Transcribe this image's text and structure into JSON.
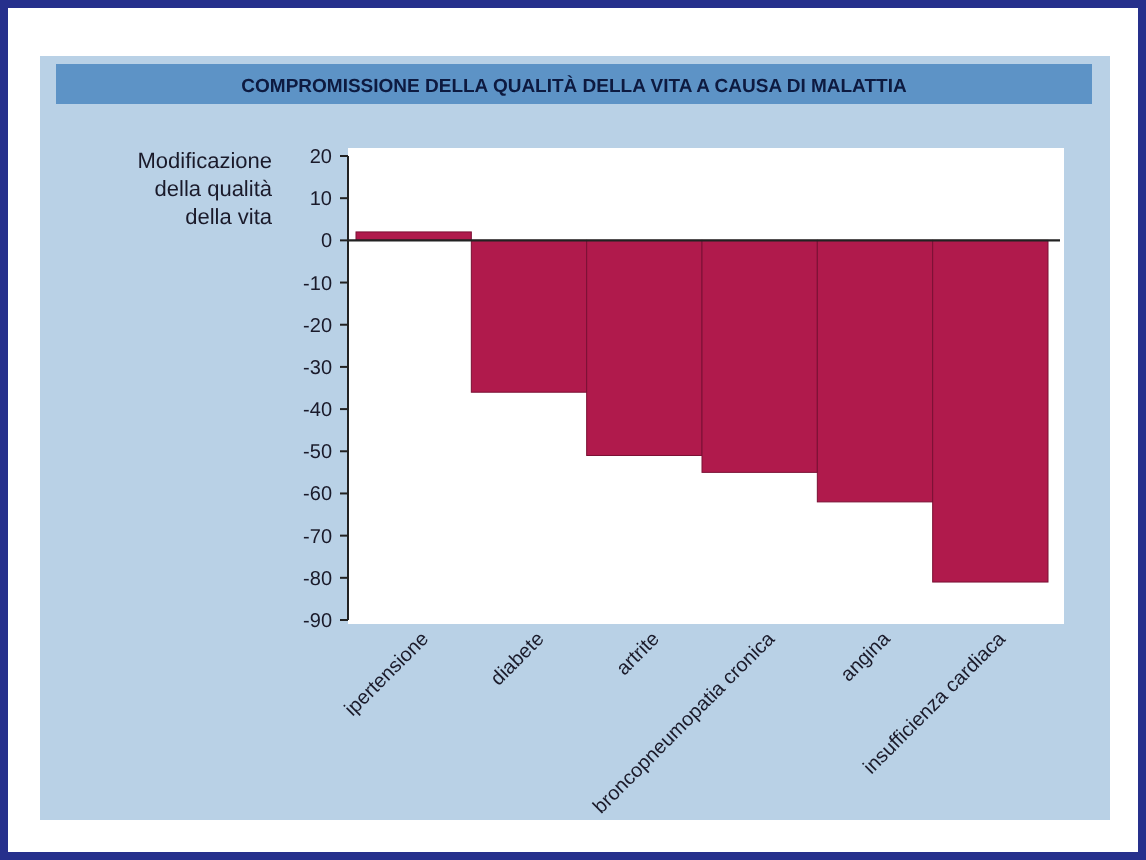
{
  "chart_data": {
    "type": "bar",
    "title": "COMPROMISSIONE DELLA QUALITÀ DELLA VITA A CAUSA DI MALATTIA",
    "ylabel": "Modificazione della qualità della vita",
    "categories": [
      "ipertensione",
      "diabete",
      "artrite",
      "broncopneumopatia cronica",
      "angina",
      "insufficienza cardiaca"
    ],
    "values": [
      2,
      -36,
      -51,
      -55,
      -62,
      -81
    ],
    "color": "#b01a4c",
    "ylim": [
      -90,
      20
    ],
    "yticks": [
      20,
      10,
      0,
      -10,
      -20,
      -30,
      -40,
      -50,
      -60,
      -70,
      -80,
      -90
    ]
  }
}
